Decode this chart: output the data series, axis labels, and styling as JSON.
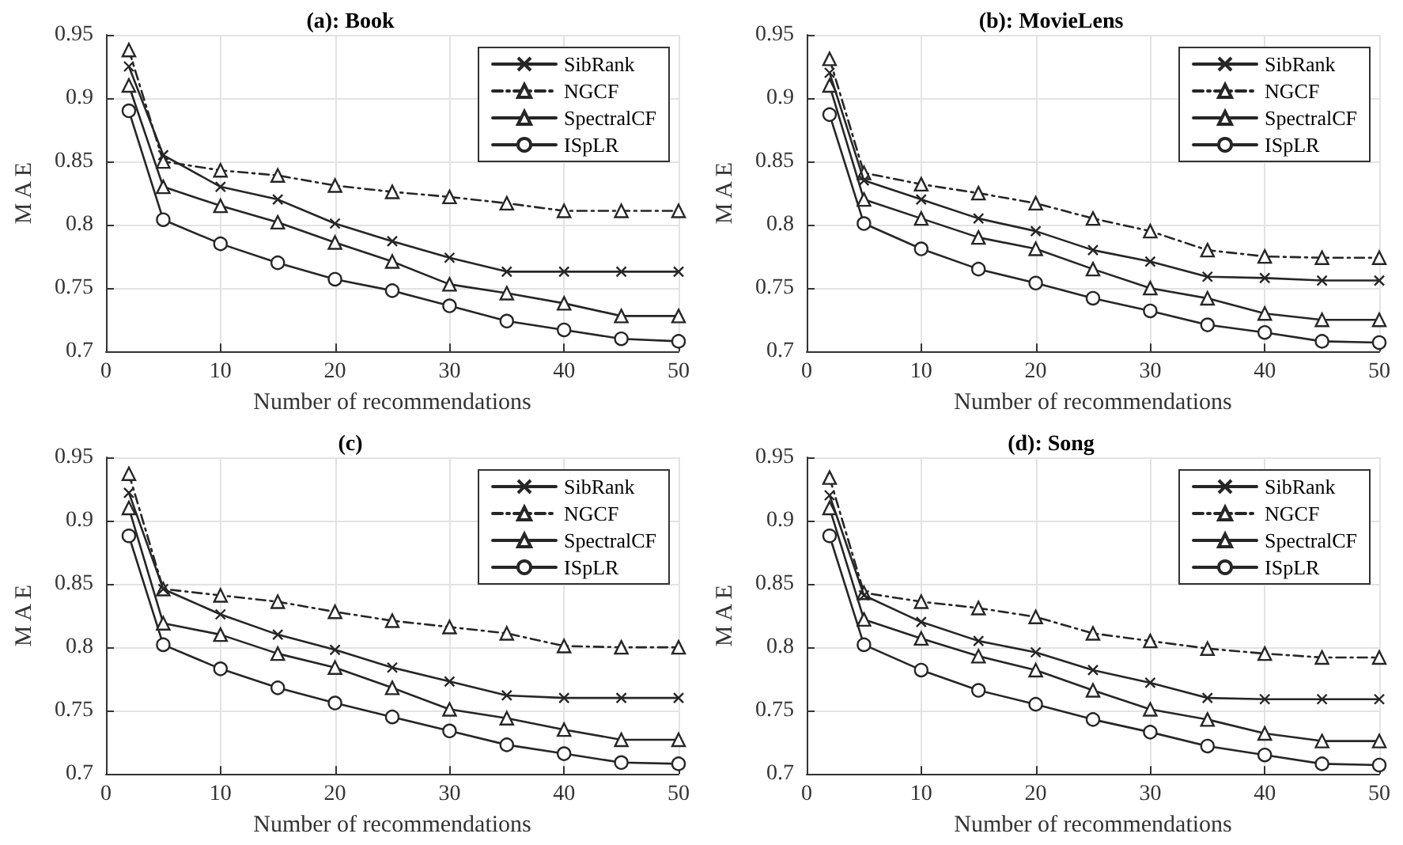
{
  "chart_data": [
    {
      "type": "line",
      "title": "(a): Book",
      "xlabel": "Number of recommendations",
      "ylabel": "M A E",
      "x": [
        2,
        5,
        10,
        15,
        20,
        25,
        30,
        35,
        40,
        45,
        50
      ],
      "xlim": [
        0,
        50
      ],
      "xticks": [
        0,
        10,
        20,
        30,
        40,
        50
      ],
      "ylim": [
        0.7,
        0.95
      ],
      "yticks": [
        0.7,
        0.75,
        0.8,
        0.85,
        0.9,
        0.95
      ],
      "grid": true,
      "legend": "top right",
      "series": [
        {
          "name": "SibRank",
          "color": "#262626",
          "marker": "cross",
          "line_style": "solid",
          "values": [
            0.925,
            0.855,
            0.83,
            0.82,
            0.801,
            0.787,
            0.774,
            0.763,
            0.763,
            0.763,
            0.763
          ]
        },
        {
          "name": "NGCF",
          "color": "#262626",
          "marker": "triangle",
          "line_style": "dashed",
          "values": [
            0.938,
            0.85,
            0.843,
            0.839,
            0.831,
            0.826,
            0.822,
            0.817,
            0.811,
            0.811,
            0.811
          ]
        },
        {
          "name": "SpectralCF",
          "color": "#262626",
          "marker": "triangle",
          "line_style": "solid",
          "values": [
            0.91,
            0.83,
            0.815,
            0.802,
            0.786,
            0.771,
            0.753,
            0.746,
            0.738,
            0.728,
            0.728
          ]
        },
        {
          "name": "ISpLR",
          "color": "#262626",
          "marker": "circle",
          "line_style": "solid",
          "values": [
            0.89,
            0.804,
            0.785,
            0.77,
            0.757,
            0.748,
            0.736,
            0.724,
            0.717,
            0.71,
            0.708
          ]
        }
      ]
    },
    {
      "type": "line",
      "title": "(b): MovieLens",
      "xlabel": "Number of recommendations",
      "ylabel": "M A E",
      "x": [
        2,
        5,
        10,
        15,
        20,
        25,
        30,
        35,
        40,
        45,
        50
      ],
      "xlim": [
        0,
        50
      ],
      "xticks": [
        0,
        10,
        20,
        30,
        40,
        50
      ],
      "ylim": [
        0.7,
        0.95
      ],
      "yticks": [
        0.7,
        0.75,
        0.8,
        0.85,
        0.9,
        0.95
      ],
      "grid": true,
      "legend": "top right",
      "series": [
        {
          "name": "SibRank",
          "color": "#262626",
          "marker": "cross",
          "line_style": "solid",
          "values": [
            0.92,
            0.835,
            0.82,
            0.805,
            0.795,
            0.78,
            0.771,
            0.759,
            0.758,
            0.756,
            0.756
          ]
        },
        {
          "name": "NGCF",
          "color": "#262626",
          "marker": "triangle",
          "line_style": "dashed",
          "values": [
            0.931,
            0.841,
            0.832,
            0.825,
            0.817,
            0.805,
            0.795,
            0.78,
            0.775,
            0.774,
            0.774
          ]
        },
        {
          "name": "SpectralCF",
          "color": "#262626",
          "marker": "triangle",
          "line_style": "solid",
          "values": [
            0.91,
            0.82,
            0.805,
            0.79,
            0.781,
            0.765,
            0.75,
            0.742,
            0.73,
            0.725,
            0.725
          ]
        },
        {
          "name": "ISpLR",
          "color": "#262626",
          "marker": "circle",
          "line_style": "solid",
          "values": [
            0.887,
            0.801,
            0.781,
            0.765,
            0.754,
            0.742,
            0.732,
            0.721,
            0.715,
            0.708,
            0.707
          ]
        }
      ]
    },
    {
      "type": "line",
      "title": "(c)",
      "xlabel": "Number of recommendations",
      "ylabel": "M A E",
      "x": [
        2,
        5,
        10,
        15,
        20,
        25,
        30,
        35,
        40,
        45,
        50
      ],
      "xlim": [
        0,
        50
      ],
      "xticks": [
        0,
        10,
        20,
        30,
        40,
        50
      ],
      "ylim": [
        0.7,
        0.95
      ],
      "yticks": [
        0.7,
        0.75,
        0.8,
        0.85,
        0.9,
        0.95
      ],
      "grid": true,
      "legend": "top right",
      "series": [
        {
          "name": "SibRank",
          "color": "#262626",
          "marker": "cross",
          "line_style": "solid",
          "values": [
            0.922,
            0.846,
            0.826,
            0.81,
            0.798,
            0.784,
            0.773,
            0.762,
            0.76,
            0.76,
            0.76
          ]
        },
        {
          "name": "NGCF",
          "color": "#262626",
          "marker": "triangle",
          "line_style": "dashed",
          "values": [
            0.937,
            0.846,
            0.841,
            0.836,
            0.828,
            0.821,
            0.816,
            0.811,
            0.801,
            0.8,
            0.8
          ]
        },
        {
          "name": "SpectralCF",
          "color": "#262626",
          "marker": "triangle",
          "line_style": "solid",
          "values": [
            0.91,
            0.819,
            0.81,
            0.795,
            0.784,
            0.768,
            0.751,
            0.744,
            0.735,
            0.727,
            0.727
          ]
        },
        {
          "name": "ISpLR",
          "color": "#262626",
          "marker": "circle",
          "line_style": "solid",
          "values": [
            0.888,
            0.802,
            0.783,
            0.768,
            0.756,
            0.745,
            0.734,
            0.723,
            0.716,
            0.709,
            0.708
          ]
        }
      ]
    },
    {
      "type": "line",
      "title": "(d): Song",
      "xlabel": "Number of recommendations",
      "ylabel": "M A E",
      "x": [
        2,
        5,
        10,
        15,
        20,
        25,
        30,
        35,
        40,
        45,
        50
      ],
      "xlim": [
        0,
        50
      ],
      "xticks": [
        0,
        10,
        20,
        30,
        40,
        50
      ],
      "ylim": [
        0.7,
        0.95
      ],
      "yticks": [
        0.7,
        0.75,
        0.8,
        0.85,
        0.9,
        0.95
      ],
      "grid": true,
      "legend": "top right",
      "series": [
        {
          "name": "SibRank",
          "color": "#262626",
          "marker": "cross",
          "line_style": "solid",
          "values": [
            0.92,
            0.841,
            0.82,
            0.805,
            0.796,
            0.782,
            0.772,
            0.76,
            0.759,
            0.759,
            0.759
          ]
        },
        {
          "name": "NGCF",
          "color": "#262626",
          "marker": "triangle",
          "line_style": "dashed",
          "values": [
            0.934,
            0.843,
            0.836,
            0.831,
            0.824,
            0.811,
            0.805,
            0.799,
            0.795,
            0.792,
            0.792
          ]
        },
        {
          "name": "SpectralCF",
          "color": "#262626",
          "marker": "triangle",
          "line_style": "solid",
          "values": [
            0.91,
            0.822,
            0.807,
            0.793,
            0.782,
            0.766,
            0.751,
            0.743,
            0.732,
            0.726,
            0.726
          ]
        },
        {
          "name": "ISpLR",
          "color": "#262626",
          "marker": "circle",
          "line_style": "solid",
          "values": [
            0.888,
            0.802,
            0.782,
            0.766,
            0.755,
            0.743,
            0.733,
            0.722,
            0.715,
            0.708,
            0.707
          ]
        }
      ]
    }
  ]
}
